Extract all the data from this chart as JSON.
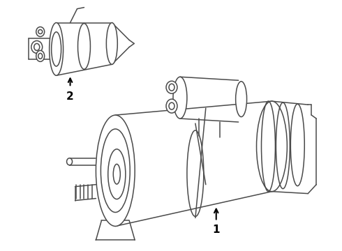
{
  "background_color": "#ffffff",
  "line_color": "#4a4a4a",
  "line_width": 1.1,
  "label1_text": "1",
  "label2_text": "2",
  "figsize": [
    4.9,
    3.6
  ],
  "dpi": 100
}
